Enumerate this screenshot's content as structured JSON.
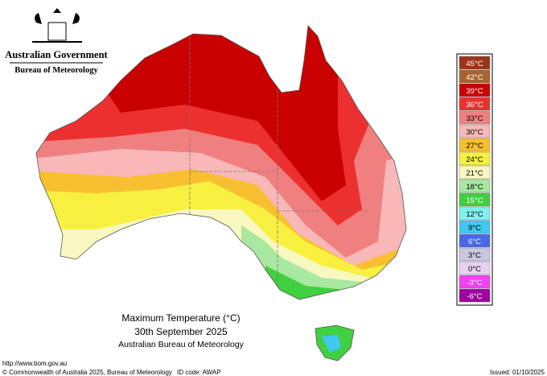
{
  "logo": {
    "line1": "Australian Government",
    "line2": "Bureau of Meteorology"
  },
  "legend": [
    {
      "label": "45°C",
      "color": "#9c3418"
    },
    {
      "label": "42°C",
      "color": "#a8642c"
    },
    {
      "label": "39°C",
      "color": "#c80000"
    },
    {
      "label": "36°C",
      "color": "#ec3030"
    },
    {
      "label": "33°C",
      "color": "#f08080"
    },
    {
      "label": "30°C",
      "color": "#f8b8b8"
    },
    {
      "label": "27°C",
      "color": "#f8c030"
    },
    {
      "label": "24°C",
      "color": "#f8f040"
    },
    {
      "label": "21°C",
      "color": "#f8f8c0"
    },
    {
      "label": "18°C",
      "color": "#a8e8a0"
    },
    {
      "label": "15°C",
      "color": "#40d040"
    },
    {
      "label": "12°C",
      "color": "#80f0f0"
    },
    {
      "label": "9°C",
      "color": "#40c8f0"
    },
    {
      "label": "6°C",
      "color": "#4868e8"
    },
    {
      "label": "3°C",
      "color": "#c8c8e0"
    },
    {
      "label": "0°C",
      "color": "#e8d0f0"
    },
    {
      "label": "-3°C",
      "color": "#f040f0"
    },
    {
      "label": "-6°C",
      "color": "#a000a0"
    }
  ],
  "caption": {
    "title": "Maximum Temperature (°C)",
    "date": "30th September 2025",
    "source": "Australian Bureau of Meteorology"
  },
  "footer": {
    "url": "http://www.bom.gov.au",
    "copyright": "© Commonwealth of Australia 2025, Bureau of Meteorology",
    "id_code": "ID code: AWAP",
    "issued": "Issued: 01/10/2025"
  }
}
